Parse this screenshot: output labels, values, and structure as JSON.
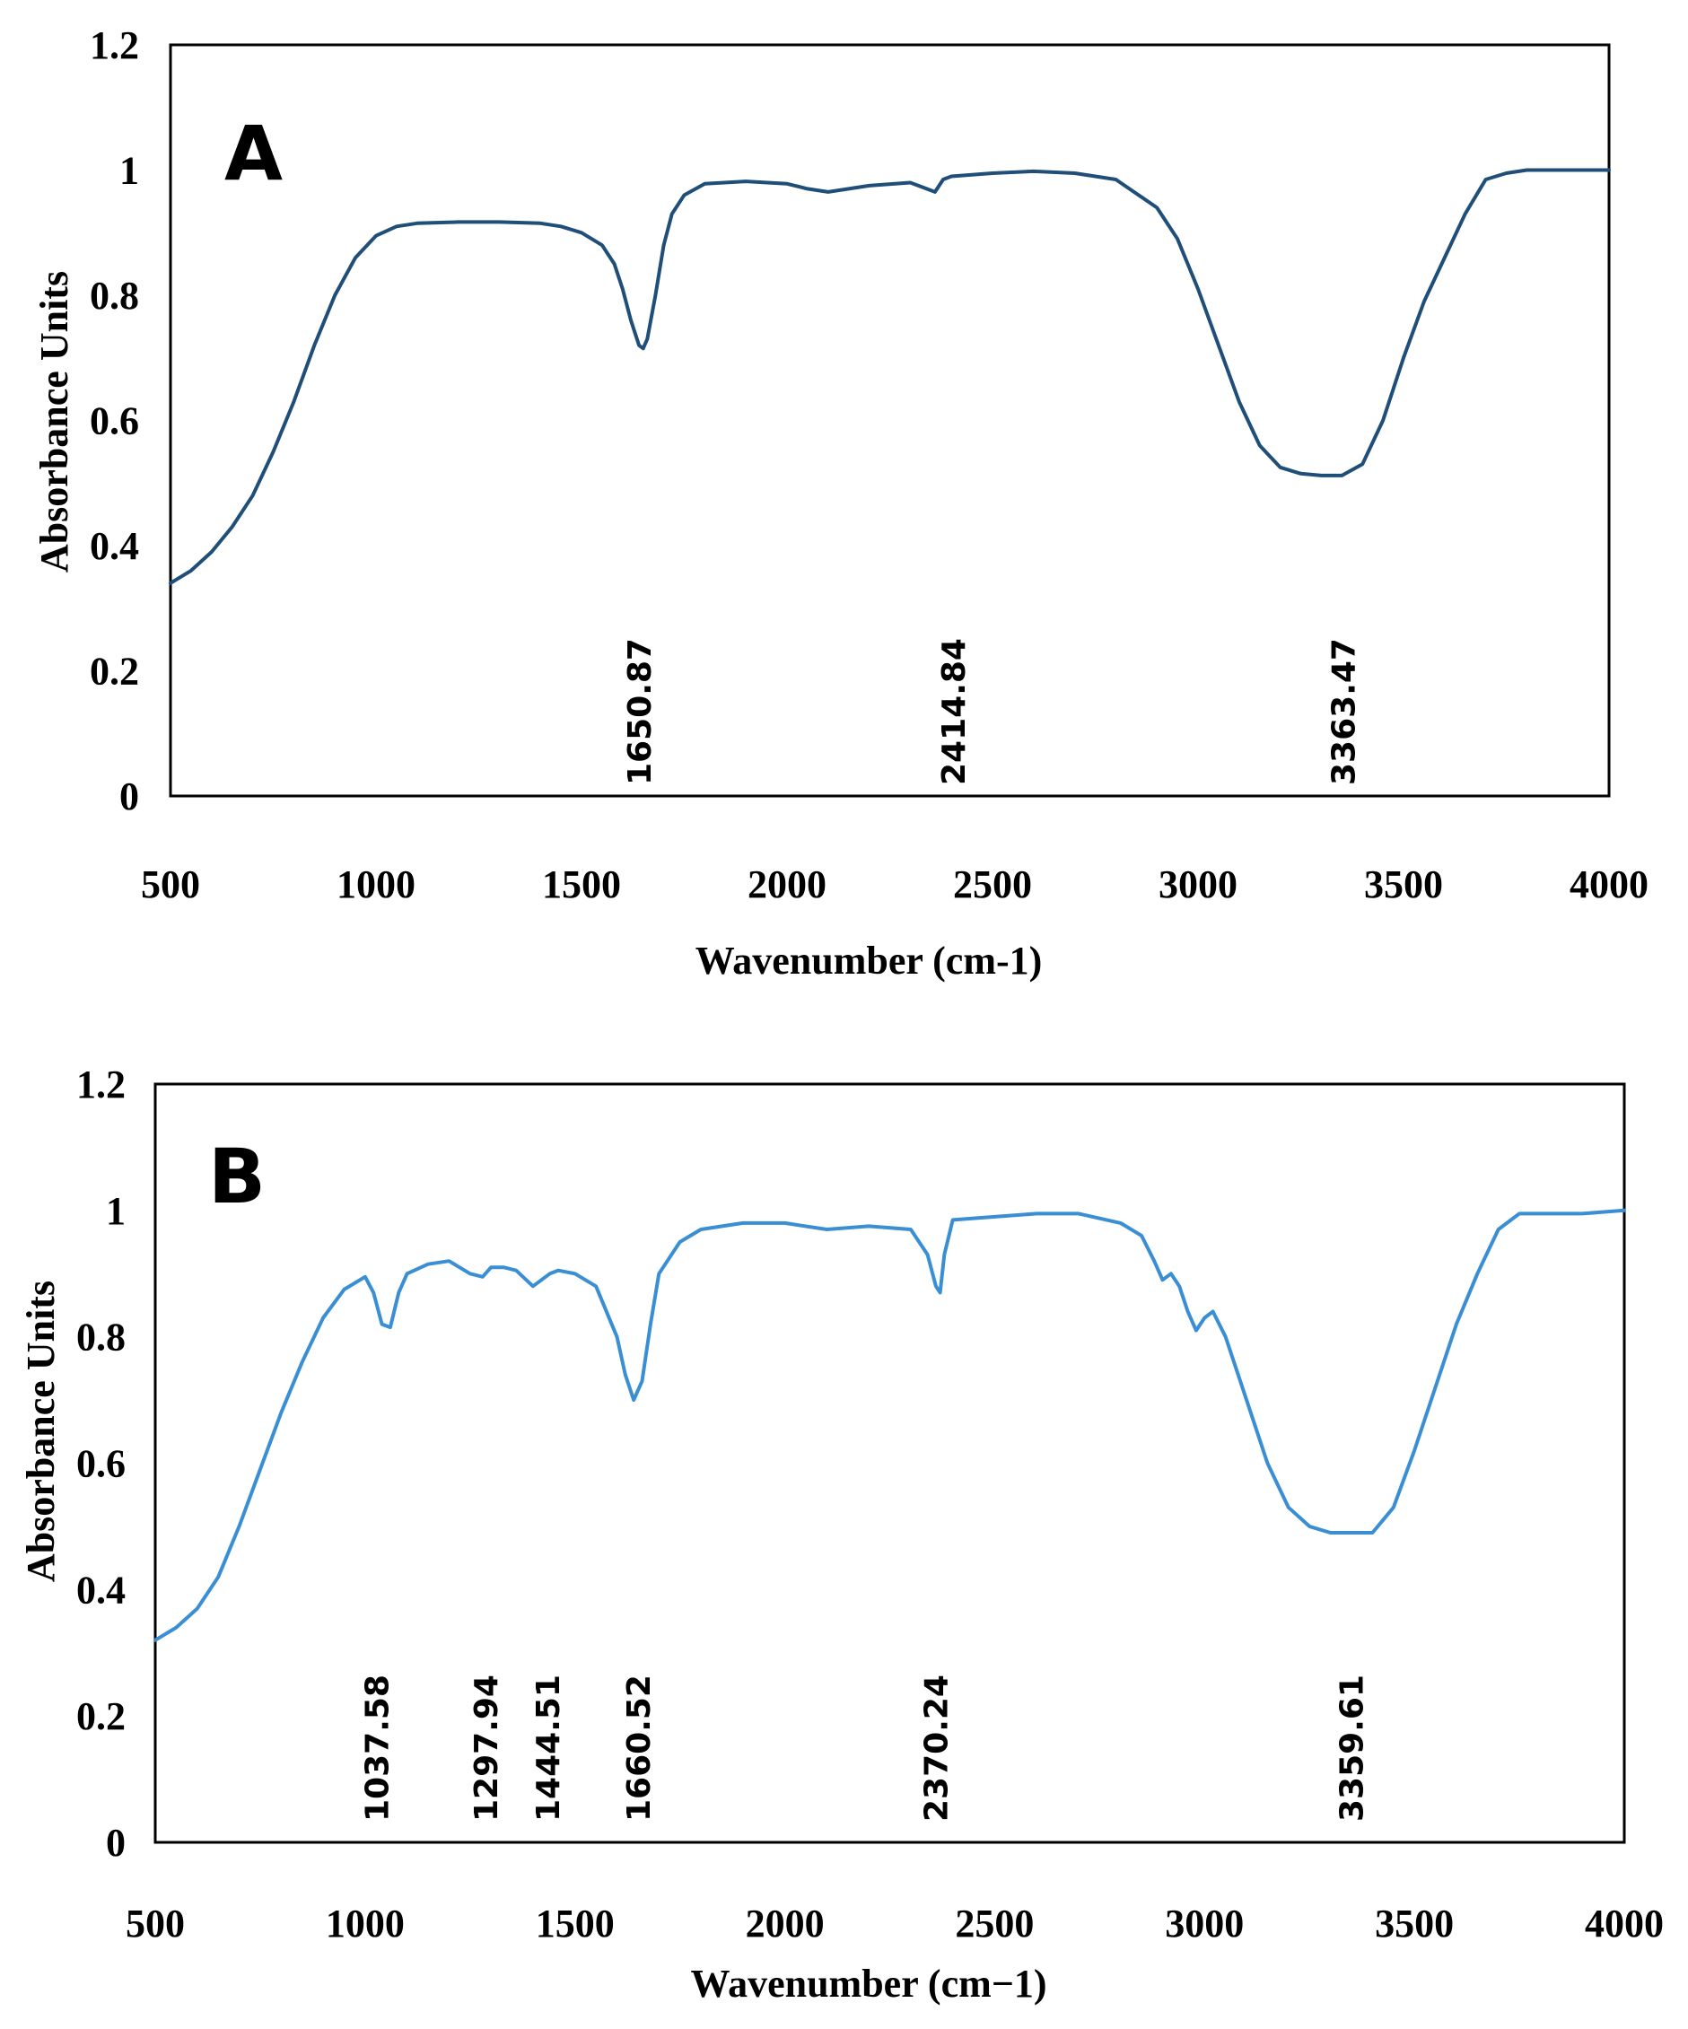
{
  "chart_data": [
    {
      "type": "line",
      "panel_label": "A",
      "xlabel": "Wavenumber (cm-1)",
      "ylabel": "Absorbance Units",
      "xlim": [
        500,
        4000
      ],
      "ylim": [
        0,
        1.2
      ],
      "x_ticks": [
        "500",
        "1000",
        "1500",
        "2000",
        "2500",
        "3000",
        "3500",
        "4000"
      ],
      "y_ticks": [
        "0",
        "0.2",
        "0.4",
        "0.6",
        "0.8",
        "1",
        "1.2"
      ],
      "grid": false,
      "series": [
        {
          "name": "A",
          "color": "#1f4e79",
          "x": [
            500,
            550,
            600,
            650,
            700,
            750,
            800,
            850,
            900,
            950,
            1000,
            1050,
            1100,
            1200,
            1300,
            1400,
            1450,
            1500,
            1550,
            1580,
            1600,
            1620,
            1640,
            1650,
            1660,
            1680,
            1700,
            1720,
            1750,
            1800,
            1900,
            2000,
            2050,
            2100,
            2150,
            2200,
            2300,
            2340,
            2360,
            2380,
            2400,
            2500,
            2600,
            2700,
            2800,
            2900,
            2950,
            3000,
            3050,
            3100,
            3150,
            3200,
            3250,
            3300,
            3350,
            3400,
            3450,
            3500,
            3550,
            3600,
            3650,
            3700,
            3750,
            3800,
            3900,
            4000
          ],
          "y": [
            0.34,
            0.36,
            0.39,
            0.43,
            0.48,
            0.55,
            0.63,
            0.72,
            0.8,
            0.86,
            0.895,
            0.91,
            0.915,
            0.917,
            0.917,
            0.915,
            0.91,
            0.9,
            0.88,
            0.85,
            0.81,
            0.76,
            0.72,
            0.715,
            0.73,
            0.8,
            0.88,
            0.93,
            0.96,
            0.978,
            0.982,
            0.978,
            0.97,
            0.965,
            0.97,
            0.975,
            0.98,
            0.97,
            0.965,
            0.985,
            0.99,
            0.995,
            0.998,
            0.995,
            0.985,
            0.94,
            0.89,
            0.81,
            0.72,
            0.63,
            0.56,
            0.525,
            0.515,
            0.512,
            0.512,
            0.53,
            0.6,
            0.7,
            0.79,
            0.86,
            0.93,
            0.985,
            0.995,
            1.0,
            1.0,
            1.0
          ]
        }
      ],
      "annotations": [
        "1650.87",
        "2414.84",
        "3363.47"
      ],
      "annotation_x": [
        1650.87,
        2414.84,
        3363.47
      ]
    },
    {
      "type": "line",
      "panel_label": "B",
      "xlabel": "Wavenumber (cm−1)",
      "ylabel": "Absorbance Units",
      "xlim": [
        500,
        4000
      ],
      "ylim": [
        0,
        1.2
      ],
      "x_ticks": [
        "500",
        "1000",
        "1500",
        "2000",
        "2500",
        "3000",
        "3500",
        "4000"
      ],
      "y_ticks": [
        "0",
        "0.2",
        "0.4",
        "0.6",
        "0.8",
        "1",
        "1.2"
      ],
      "grid": false,
      "series": [
        {
          "name": "B",
          "color": "#3a8fd4",
          "x": [
            500,
            550,
            600,
            650,
            700,
            750,
            800,
            850,
            900,
            950,
            1000,
            1020,
            1040,
            1060,
            1080,
            1100,
            1150,
            1200,
            1250,
            1280,
            1300,
            1330,
            1360,
            1400,
            1420,
            1440,
            1460,
            1500,
            1550,
            1600,
            1620,
            1640,
            1660,
            1680,
            1700,
            1750,
            1800,
            1900,
            2000,
            2100,
            2200,
            2300,
            2340,
            2360,
            2370,
            2380,
            2400,
            2500,
            2600,
            2700,
            2800,
            2850,
            2880,
            2900,
            2920,
            2940,
            2960,
            2980,
            3000,
            3020,
            3050,
            3100,
            3150,
            3200,
            3250,
            3300,
            3350,
            3400,
            3450,
            3500,
            3550,
            3600,
            3650,
            3700,
            3750,
            3800,
            3900,
            4000
          ],
          "y": [
            0.32,
            0.34,
            0.37,
            0.42,
            0.5,
            0.59,
            0.68,
            0.76,
            0.83,
            0.875,
            0.895,
            0.87,
            0.82,
            0.815,
            0.87,
            0.9,
            0.915,
            0.92,
            0.9,
            0.895,
            0.91,
            0.91,
            0.905,
            0.88,
            0.89,
            0.9,
            0.905,
            0.9,
            0.88,
            0.8,
            0.74,
            0.7,
            0.73,
            0.82,
            0.9,
            0.95,
            0.97,
            0.98,
            0.98,
            0.97,
            0.975,
            0.97,
            0.93,
            0.88,
            0.87,
            0.93,
            0.985,
            0.99,
            0.995,
            0.995,
            0.98,
            0.96,
            0.92,
            0.89,
            0.9,
            0.88,
            0.84,
            0.81,
            0.83,
            0.84,
            0.8,
            0.7,
            0.6,
            0.53,
            0.5,
            0.49,
            0.49,
            0.49,
            0.53,
            0.62,
            0.72,
            0.82,
            0.9,
            0.97,
            0.995,
            0.995,
            0.995,
            1.0
          ]
        }
      ],
      "annotations": [
        "1037.58",
        "1297.94",
        "1444.51",
        "1660.52",
        "2370.24",
        "3359.61"
      ],
      "annotation_x": [
        1037.58,
        1297.94,
        1444.51,
        1660.52,
        2370.24,
        3359.61
      ]
    }
  ]
}
